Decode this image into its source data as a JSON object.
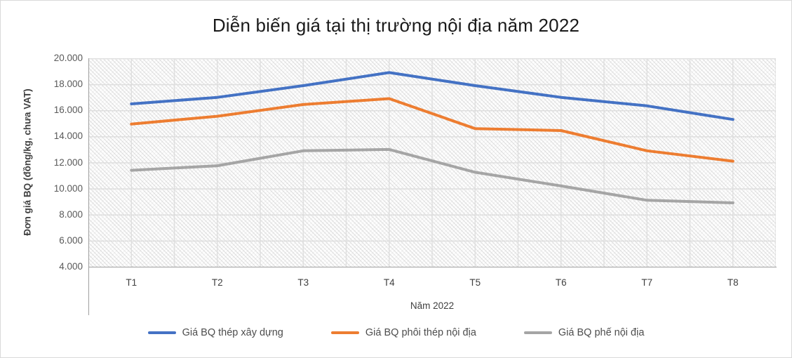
{
  "chart_data": {
    "type": "line",
    "title": "Diễn biến giá tại thị trường nội địa năm 2022",
    "xlabel": "Năm 2022",
    "ylabel": "Đơn giá BQ (đồng/kg, chưa VAT)",
    "categories": [
      "T1",
      "T2",
      "T3",
      "T4",
      "T5",
      "T6",
      "T7",
      "T8"
    ],
    "ylim": [
      4000,
      20000
    ],
    "ytick_step": 2000,
    "ytick_labels": [
      "20.000",
      "18.000",
      "16.000",
      "14.000",
      "12.000",
      "10.000",
      "8.000",
      "6.000",
      "4.000"
    ],
    "grid": true,
    "plot_background": "diagonal-hatch-pattern",
    "legend_position": "bottom",
    "series": [
      {
        "name": "Giá BQ thép xây dựng",
        "color": "#4472C4",
        "values": [
          16500,
          17000,
          17900,
          18900,
          17900,
          17000,
          16350,
          15300
        ]
      },
      {
        "name": "Giá BQ phôi thép nội địa",
        "color": "#ED7D31",
        "values": [
          14950,
          15550,
          16450,
          16900,
          14600,
          14450,
          12900,
          12100
        ]
      },
      {
        "name": "Giá BQ phế nội địa",
        "color": "#A5A5A5",
        "values": [
          11400,
          11750,
          12900,
          13000,
          11250,
          10200,
          9100,
          8900
        ]
      }
    ],
    "gridline_color": "#dedede",
    "axis_line_color": "#a0a0a0"
  }
}
